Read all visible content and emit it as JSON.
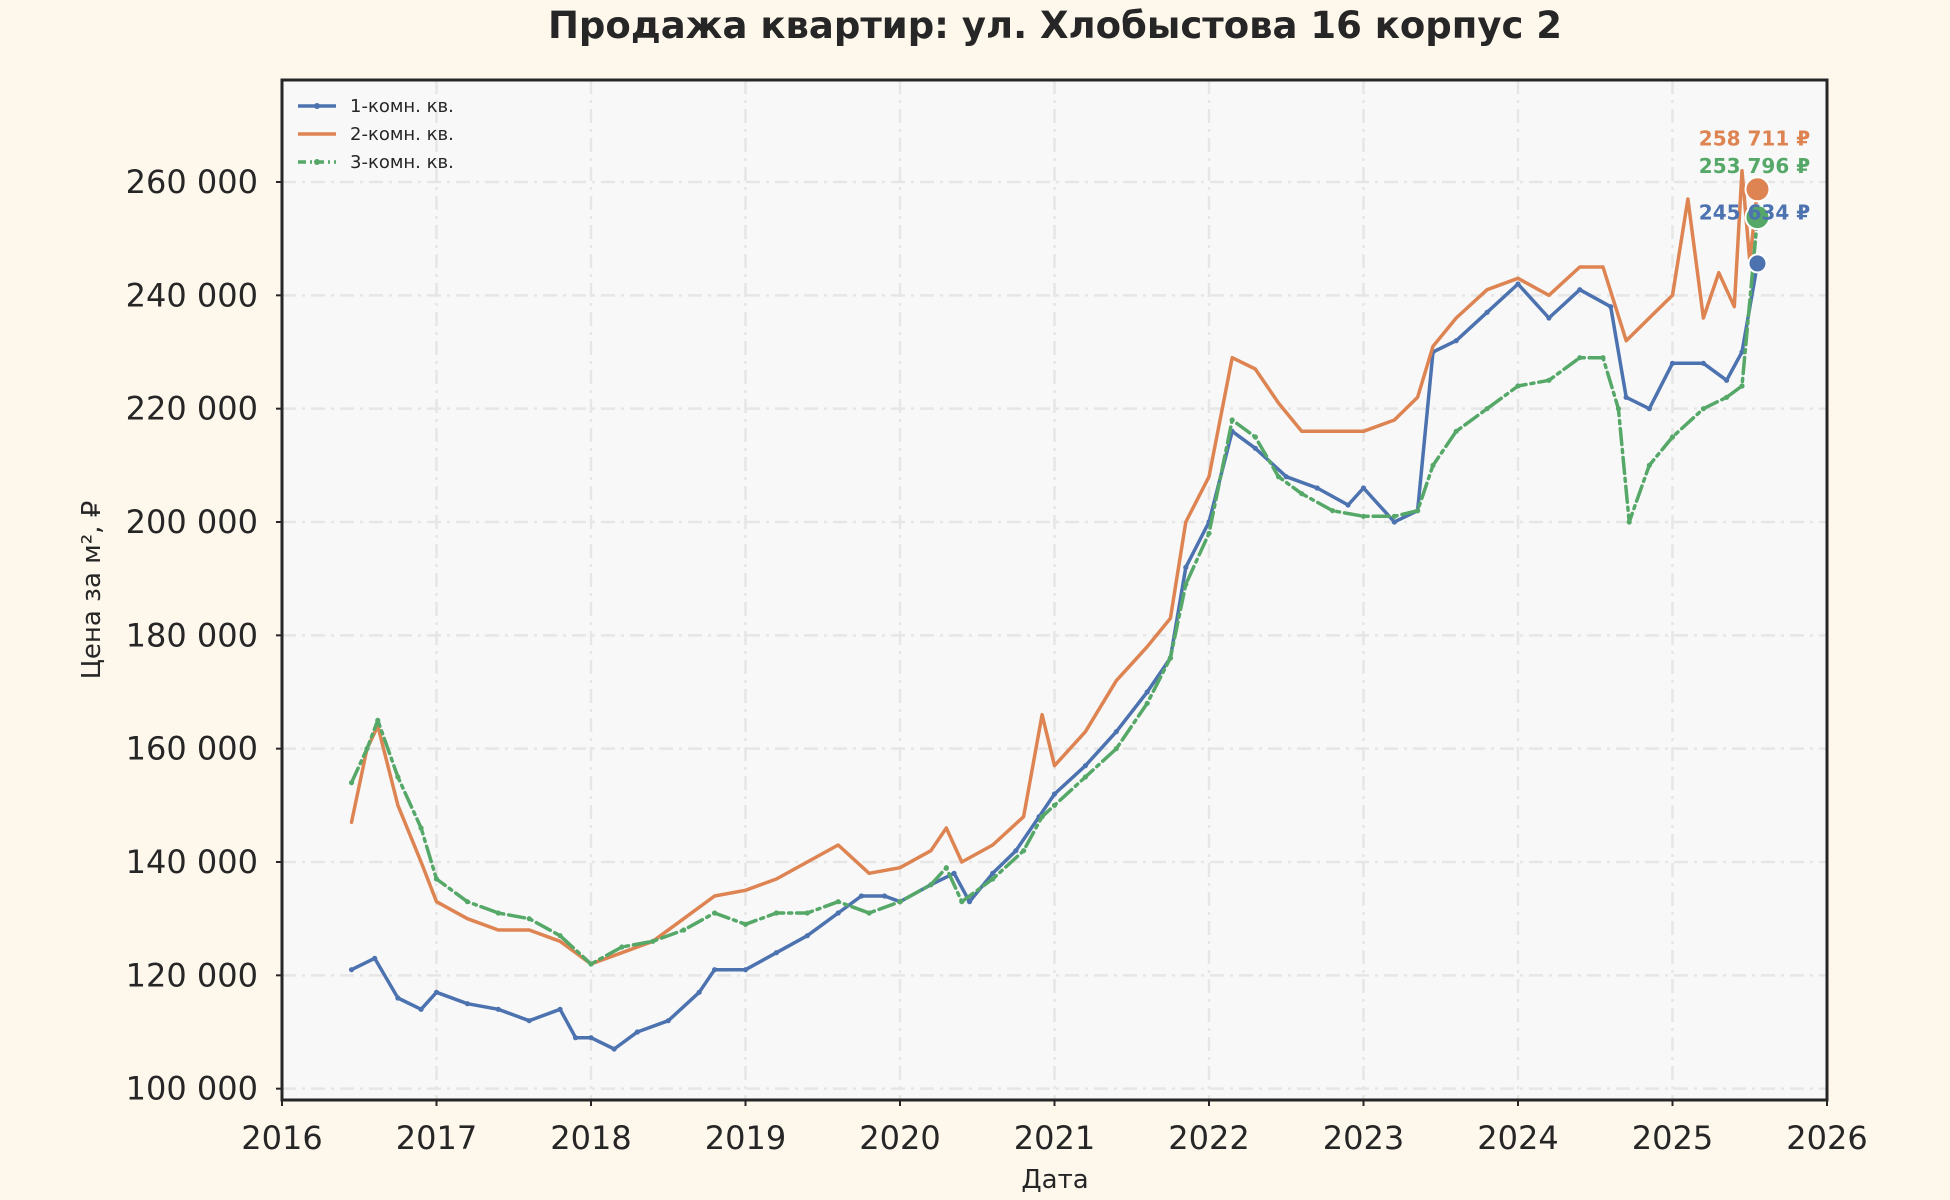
{
  "chart_data": {
    "type": "line",
    "title": "Продажа квартир: ул. Хлобыстова 16 корпус 2",
    "xlabel": "Дата",
    "ylabel": "Цена за м², ₽",
    "xlim": [
      2016,
      2026
    ],
    "ylim": [
      98000,
      278000
    ],
    "x_ticks": [
      "2016",
      "2017",
      "2018",
      "2019",
      "2020",
      "2021",
      "2022",
      "2023",
      "2024",
      "2025",
      "2026"
    ],
    "y_ticks": [
      "100 000",
      "120 000",
      "140 000",
      "160 000",
      "180 000",
      "200 000",
      "220 000",
      "240 000",
      "260 000"
    ],
    "grid": true,
    "legend_position": "top-left",
    "colors": {
      "1": "#4c72b0",
      "2": "#dd8452",
      "3": "#55a868"
    },
    "series": [
      {
        "name": "1-комн. кв.",
        "color": "#4c72b0",
        "style": "solid-dot",
        "last_label": "245 634 ₽",
        "last_value": 245634,
        "x": [
          2016.45,
          2016.6,
          2016.75,
          2016.9,
          2017.0,
          2017.2,
          2017.4,
          2017.6,
          2017.8,
          2017.9,
          2018.0,
          2018.15,
          2018.3,
          2018.5,
          2018.7,
          2018.8,
          2019.0,
          2019.2,
          2019.4,
          2019.6,
          2019.75,
          2019.9,
          2020.0,
          2020.2,
          2020.35,
          2020.45,
          2020.6,
          2020.75,
          2020.9,
          2021.0,
          2021.2,
          2021.4,
          2021.6,
          2021.75,
          2021.85,
          2022.0,
          2022.15,
          2022.3,
          2022.5,
          2022.7,
          2022.9,
          2023.0,
          2023.2,
          2023.35,
          2023.45,
          2023.6,
          2023.8,
          2024.0,
          2024.2,
          2024.4,
          2024.6,
          2024.7,
          2024.85,
          2025.0,
          2025.2,
          2025.35,
          2025.45,
          2025.55
        ],
        "values": [
          121000,
          123000,
          116000,
          114000,
          117000,
          115000,
          114000,
          112000,
          114000,
          109000,
          109000,
          107000,
          110000,
          112000,
          117000,
          121000,
          121000,
          124000,
          127000,
          131000,
          134000,
          134000,
          133000,
          136000,
          138000,
          133000,
          138000,
          142000,
          148000,
          152000,
          157000,
          163000,
          170000,
          176000,
          192000,
          200000,
          216000,
          213000,
          208000,
          206000,
          203000,
          206000,
          200000,
          202000,
          230000,
          232000,
          237000,
          242000,
          236000,
          241000,
          238000,
          222000,
          220000,
          228000,
          228000,
          225000,
          230000,
          245634
        ]
      },
      {
        "name": "2-комн. кв.",
        "color": "#dd8452",
        "style": "solid",
        "last_label": "258 711 ₽",
        "last_value": 258711,
        "x": [
          2016.45,
          2016.55,
          2016.62,
          2016.75,
          2016.9,
          2017.0,
          2017.2,
          2017.4,
          2017.6,
          2017.8,
          2018.0,
          2018.2,
          2018.4,
          2018.6,
          2018.8,
          2019.0,
          2019.2,
          2019.4,
          2019.6,
          2019.8,
          2020.0,
          2020.2,
          2020.3,
          2020.4,
          2020.6,
          2020.8,
          2020.92,
          2021.0,
          2021.2,
          2021.4,
          2021.6,
          2021.75,
          2021.85,
          2022.0,
          2022.15,
          2022.3,
          2022.45,
          2022.6,
          2022.8,
          2023.0,
          2023.2,
          2023.35,
          2023.45,
          2023.6,
          2023.8,
          2024.0,
          2024.2,
          2024.4,
          2024.55,
          2024.7,
          2024.85,
          2025.0,
          2025.1,
          2025.2,
          2025.3,
          2025.4,
          2025.45,
          2025.5,
          2025.55
        ],
        "values": [
          147000,
          160000,
          164000,
          150000,
          140000,
          133000,
          130000,
          128000,
          128000,
          126000,
          122000,
          124000,
          126000,
          130000,
          134000,
          135000,
          137000,
          140000,
          143000,
          138000,
          139000,
          142000,
          146000,
          140000,
          143000,
          148000,
          166000,
          157000,
          163000,
          172000,
          178000,
          183000,
          200000,
          208000,
          229000,
          227000,
          221000,
          216000,
          216000,
          216000,
          218000,
          222000,
          231000,
          236000,
          241000,
          243000,
          240000,
          245000,
          245000,
          232000,
          236000,
          240000,
          257000,
          236000,
          244000,
          238000,
          262000,
          246000,
          258711
        ]
      },
      {
        "name": "3-комн. кв.",
        "color": "#55a868",
        "style": "dashdot-dot",
        "last_label": "253 796 ₽",
        "last_value": 253796,
        "x": [
          2016.45,
          2016.55,
          2016.62,
          2016.75,
          2016.9,
          2017.0,
          2017.2,
          2017.4,
          2017.6,
          2017.8,
          2018.0,
          2018.2,
          2018.4,
          2018.6,
          2018.8,
          2019.0,
          2019.2,
          2019.4,
          2019.6,
          2019.8,
          2020.0,
          2020.2,
          2020.3,
          2020.4,
          2020.6,
          2020.8,
          2020.92,
          2021.0,
          2021.2,
          2021.4,
          2021.6,
          2021.75,
          2021.85,
          2022.0,
          2022.15,
          2022.3,
          2022.45,
          2022.6,
          2022.8,
          2023.0,
          2023.2,
          2023.35,
          2023.45,
          2023.6,
          2023.8,
          2024.0,
          2024.2,
          2024.4,
          2024.55,
          2024.65,
          2024.72,
          2024.85,
          2025.0,
          2025.2,
          2025.35,
          2025.45,
          2025.55
        ],
        "values": [
          154000,
          160000,
          165000,
          155000,
          146000,
          137000,
          133000,
          131000,
          130000,
          127000,
          122000,
          125000,
          126000,
          128000,
          131000,
          129000,
          131000,
          131000,
          133000,
          131000,
          133000,
          136000,
          139000,
          133000,
          137000,
          142000,
          148000,
          150000,
          155000,
          160000,
          168000,
          176000,
          189000,
          198000,
          218000,
          215000,
          208000,
          205000,
          202000,
          201000,
          201000,
          202000,
          210000,
          216000,
          220000,
          224000,
          225000,
          229000,
          229000,
          220000,
          200000,
          210000,
          215000,
          220000,
          222000,
          224000,
          253796
        ]
      }
    ]
  }
}
